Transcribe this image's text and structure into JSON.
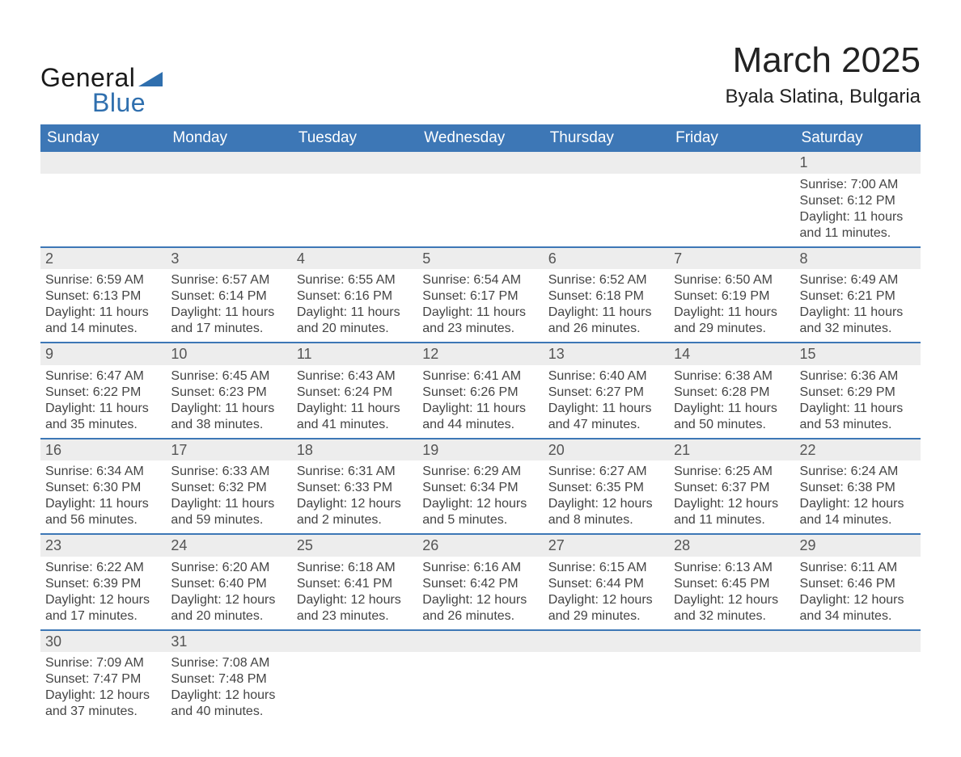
{
  "logo": {
    "general": "General",
    "blue": "Blue"
  },
  "colors": {
    "header_blue": "#3d77b6",
    "logo_blue": "#2f6fae",
    "logo_dark": "#1a1a1a",
    "alt_row_bg": "#ededed",
    "text": "#333333"
  },
  "header": {
    "title": "March 2025",
    "location": "Byala Slatina, Bulgaria"
  },
  "dayNames": [
    "Sunday",
    "Monday",
    "Tuesday",
    "Wednesday",
    "Thursday",
    "Friday",
    "Saturday"
  ],
  "weeks": [
    [
      null,
      null,
      null,
      null,
      null,
      null,
      {
        "n": "1",
        "sunrise": "Sunrise: 7:00 AM",
        "sunset": "Sunset: 6:12 PM",
        "daylight": "Daylight: 11 hours and 11 minutes."
      }
    ],
    [
      {
        "n": "2",
        "sunrise": "Sunrise: 6:59 AM",
        "sunset": "Sunset: 6:13 PM",
        "daylight": "Daylight: 11 hours and 14 minutes."
      },
      {
        "n": "3",
        "sunrise": "Sunrise: 6:57 AM",
        "sunset": "Sunset: 6:14 PM",
        "daylight": "Daylight: 11 hours and 17 minutes."
      },
      {
        "n": "4",
        "sunrise": "Sunrise: 6:55 AM",
        "sunset": "Sunset: 6:16 PM",
        "daylight": "Daylight: 11 hours and 20 minutes."
      },
      {
        "n": "5",
        "sunrise": "Sunrise: 6:54 AM",
        "sunset": "Sunset: 6:17 PM",
        "daylight": "Daylight: 11 hours and 23 minutes."
      },
      {
        "n": "6",
        "sunrise": "Sunrise: 6:52 AM",
        "sunset": "Sunset: 6:18 PM",
        "daylight": "Daylight: 11 hours and 26 minutes."
      },
      {
        "n": "7",
        "sunrise": "Sunrise: 6:50 AM",
        "sunset": "Sunset: 6:19 PM",
        "daylight": "Daylight: 11 hours and 29 minutes."
      },
      {
        "n": "8",
        "sunrise": "Sunrise: 6:49 AM",
        "sunset": "Sunset: 6:21 PM",
        "daylight": "Daylight: 11 hours and 32 minutes."
      }
    ],
    [
      {
        "n": "9",
        "sunrise": "Sunrise: 6:47 AM",
        "sunset": "Sunset: 6:22 PM",
        "daylight": "Daylight: 11 hours and 35 minutes."
      },
      {
        "n": "10",
        "sunrise": "Sunrise: 6:45 AM",
        "sunset": "Sunset: 6:23 PM",
        "daylight": "Daylight: 11 hours and 38 minutes."
      },
      {
        "n": "11",
        "sunrise": "Sunrise: 6:43 AM",
        "sunset": "Sunset: 6:24 PM",
        "daylight": "Daylight: 11 hours and 41 minutes."
      },
      {
        "n": "12",
        "sunrise": "Sunrise: 6:41 AM",
        "sunset": "Sunset: 6:26 PM",
        "daylight": "Daylight: 11 hours and 44 minutes."
      },
      {
        "n": "13",
        "sunrise": "Sunrise: 6:40 AM",
        "sunset": "Sunset: 6:27 PM",
        "daylight": "Daylight: 11 hours and 47 minutes."
      },
      {
        "n": "14",
        "sunrise": "Sunrise: 6:38 AM",
        "sunset": "Sunset: 6:28 PM",
        "daylight": "Daylight: 11 hours and 50 minutes."
      },
      {
        "n": "15",
        "sunrise": "Sunrise: 6:36 AM",
        "sunset": "Sunset: 6:29 PM",
        "daylight": "Daylight: 11 hours and 53 minutes."
      }
    ],
    [
      {
        "n": "16",
        "sunrise": "Sunrise: 6:34 AM",
        "sunset": "Sunset: 6:30 PM",
        "daylight": "Daylight: 11 hours and 56 minutes."
      },
      {
        "n": "17",
        "sunrise": "Sunrise: 6:33 AM",
        "sunset": "Sunset: 6:32 PM",
        "daylight": "Daylight: 11 hours and 59 minutes."
      },
      {
        "n": "18",
        "sunrise": "Sunrise: 6:31 AM",
        "sunset": "Sunset: 6:33 PM",
        "daylight": "Daylight: 12 hours and 2 minutes."
      },
      {
        "n": "19",
        "sunrise": "Sunrise: 6:29 AM",
        "sunset": "Sunset: 6:34 PM",
        "daylight": "Daylight: 12 hours and 5 minutes."
      },
      {
        "n": "20",
        "sunrise": "Sunrise: 6:27 AM",
        "sunset": "Sunset: 6:35 PM",
        "daylight": "Daylight: 12 hours and 8 minutes."
      },
      {
        "n": "21",
        "sunrise": "Sunrise: 6:25 AM",
        "sunset": "Sunset: 6:37 PM",
        "daylight": "Daylight: 12 hours and 11 minutes."
      },
      {
        "n": "22",
        "sunrise": "Sunrise: 6:24 AM",
        "sunset": "Sunset: 6:38 PM",
        "daylight": "Daylight: 12 hours and 14 minutes."
      }
    ],
    [
      {
        "n": "23",
        "sunrise": "Sunrise: 6:22 AM",
        "sunset": "Sunset: 6:39 PM",
        "daylight": "Daylight: 12 hours and 17 minutes."
      },
      {
        "n": "24",
        "sunrise": "Sunrise: 6:20 AM",
        "sunset": "Sunset: 6:40 PM",
        "daylight": "Daylight: 12 hours and 20 minutes."
      },
      {
        "n": "25",
        "sunrise": "Sunrise: 6:18 AM",
        "sunset": "Sunset: 6:41 PM",
        "daylight": "Daylight: 12 hours and 23 minutes."
      },
      {
        "n": "26",
        "sunrise": "Sunrise: 6:16 AM",
        "sunset": "Sunset: 6:42 PM",
        "daylight": "Daylight: 12 hours and 26 minutes."
      },
      {
        "n": "27",
        "sunrise": "Sunrise: 6:15 AM",
        "sunset": "Sunset: 6:44 PM",
        "daylight": "Daylight: 12 hours and 29 minutes."
      },
      {
        "n": "28",
        "sunrise": "Sunrise: 6:13 AM",
        "sunset": "Sunset: 6:45 PM",
        "daylight": "Daylight: 12 hours and 32 minutes."
      },
      {
        "n": "29",
        "sunrise": "Sunrise: 6:11 AM",
        "sunset": "Sunset: 6:46 PM",
        "daylight": "Daylight: 12 hours and 34 minutes."
      }
    ],
    [
      {
        "n": "30",
        "sunrise": "Sunrise: 7:09 AM",
        "sunset": "Sunset: 7:47 PM",
        "daylight": "Daylight: 12 hours and 37 minutes."
      },
      {
        "n": "31",
        "sunrise": "Sunrise: 7:08 AM",
        "sunset": "Sunset: 7:48 PM",
        "daylight": "Daylight: 12 hours and 40 minutes."
      },
      null,
      null,
      null,
      null,
      null
    ]
  ]
}
